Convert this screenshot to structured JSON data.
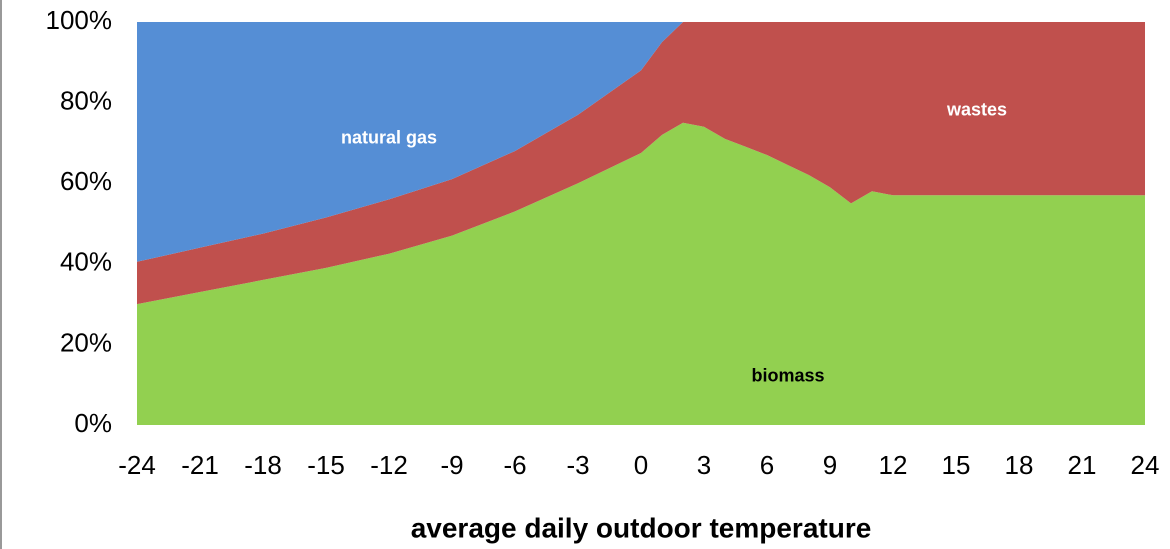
{
  "chart_data": {
    "type": "stacked-area",
    "x_label": "average daily outdoor temperature",
    "x": [
      -24,
      -21,
      -18,
      -15,
      -12,
      -9,
      -6,
      -3,
      0,
      1,
      2,
      3,
      4,
      5,
      6,
      7,
      8,
      9,
      10,
      11,
      12,
      24
    ],
    "series": [
      {
        "name": "biomass",
        "color": "#92d050",
        "values": [
          30,
          33,
          36,
          39,
          42.5,
          47,
          53,
          60,
          67.5,
          72,
          75,
          74,
          71,
          69,
          67,
          64.5,
          62,
          59,
          55,
          58,
          57,
          57
        ]
      },
      {
        "name": "wastes",
        "color": "#c0504d",
        "values": [
          10.5,
          11,
          11.5,
          12.5,
          13.5,
          14,
          15,
          17,
          20.5,
          23,
          25,
          26,
          29,
          31,
          33,
          35.5,
          38,
          41,
          45,
          42,
          43,
          43
        ]
      },
      {
        "name": "natural gas",
        "color": "#558ed5",
        "values": [
          59.5,
          56,
          52.5,
          48.5,
          44,
          39,
          32,
          23,
          12,
          5,
          0,
          0,
          0,
          0,
          0,
          0,
          0,
          0,
          0,
          0,
          0,
          0
        ]
      }
    ],
    "xlim": [
      -24,
      24
    ],
    "ylim": [
      0,
      100
    ],
    "xticks": [
      -24,
      -21,
      -18,
      -15,
      -12,
      -9,
      -6,
      -3,
      0,
      3,
      6,
      9,
      12,
      15,
      18,
      21,
      24
    ],
    "yticks": [
      {
        "value": 0,
        "label": "0%"
      },
      {
        "value": 20,
        "label": "20%"
      },
      {
        "value": 40,
        "label": "40%"
      },
      {
        "value": 60,
        "label": "60%"
      },
      {
        "value": 80,
        "label": "80%"
      },
      {
        "value": 100,
        "label": "100%"
      }
    ]
  }
}
